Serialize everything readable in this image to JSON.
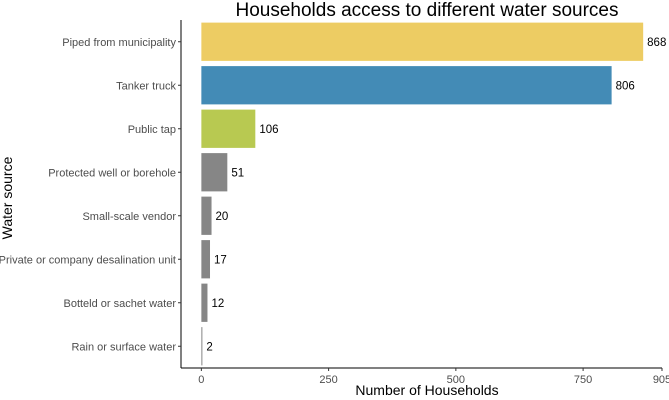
{
  "chart_data": {
    "type": "bar",
    "orientation": "horizontal",
    "title": "Households access to different water sources",
    "xlabel": "Number of Households",
    "ylabel": "Water source",
    "xlim": [
      -40,
      905
    ],
    "xticks": [
      0,
      250,
      500,
      750,
      905
    ],
    "grid": false,
    "legend": "none",
    "categories": [
      "Piped from municipality",
      "Tanker truck",
      "Public tap",
      "Protected well or borehole",
      "Small-scale vendor",
      "Private or company desalination unit",
      "Botteld or sachet water",
      "Rain or surface water"
    ],
    "values": [
      868,
      806,
      106,
      51,
      20,
      17,
      12,
      2
    ],
    "colors": [
      "#EDCC63",
      "#438BB6",
      "#B8C951",
      "#868686",
      "#868686",
      "#868686",
      "#868686",
      "#868686"
    ]
  }
}
